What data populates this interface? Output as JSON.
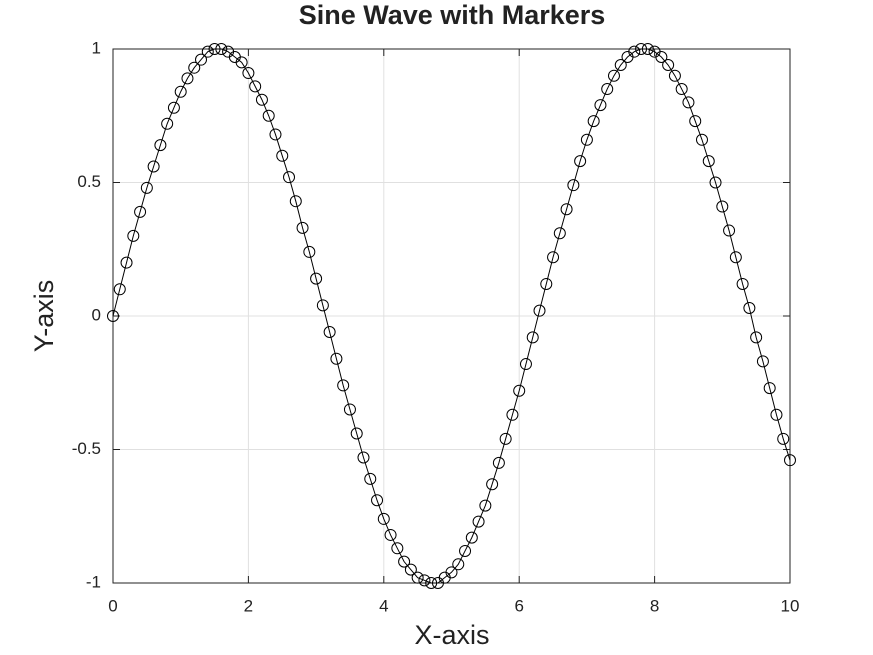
{
  "chart_data": {
    "type": "line",
    "title": "Sine Wave with Markers",
    "x_label": "X-axis",
    "y_label": "Y-axis",
    "x": [
      0,
      0.1,
      0.2,
      0.3,
      0.4,
      0.5,
      0.6,
      0.7,
      0.8,
      0.9,
      1,
      1.1,
      1.2,
      1.3,
      1.4,
      1.5,
      1.6,
      1.7,
      1.8,
      1.9,
      2,
      2.1,
      2.2,
      2.3,
      2.4,
      2.5,
      2.6,
      2.7,
      2.8,
      2.9,
      3,
      3.1,
      3.2,
      3.3,
      3.4,
      3.5,
      3.6,
      3.7,
      3.8,
      3.9,
      4,
      4.1,
      4.2,
      4.3,
      4.4,
      4.5,
      4.6,
      4.7,
      4.8,
      4.9,
      5,
      5.1,
      5.2,
      5.3,
      5.4,
      5.5,
      5.6,
      5.7,
      5.8,
      5.9,
      6,
      6.1,
      6.2,
      6.3,
      6.4,
      6.5,
      6.6,
      6.7,
      6.8,
      6.9,
      7,
      7.1,
      7.2,
      7.3,
      7.4,
      7.5,
      7.6,
      7.7,
      7.8,
      7.9,
      8,
      8.1,
      8.2,
      8.3,
      8.4,
      8.5,
      8.6,
      8.7,
      8.8,
      8.9,
      9,
      9.1,
      9.2,
      9.3,
      9.4,
      9.5,
      9.6,
      9.7,
      9.8,
      9.9,
      10
    ],
    "series": [
      {
        "color": "#000000",
        "marker": "circle",
        "values": [
          0,
          0.1,
          0.2,
          0.3,
          0.39,
          0.48,
          0.56,
          0.64,
          0.72,
          0.78,
          0.84,
          0.89,
          0.93,
          0.96,
          0.99,
          1,
          1,
          0.99,
          0.97,
          0.95,
          0.91,
          0.86,
          0.81,
          0.75,
          0.68,
          0.6,
          0.52,
          0.43,
          0.33,
          0.24,
          0.14,
          0.04,
          -0.06,
          -0.16,
          -0.26,
          -0.35,
          -0.44,
          -0.53,
          -0.61,
          -0.69,
          -0.76,
          -0.82,
          -0.87,
          -0.92,
          -0.95,
          -0.98,
          -0.99,
          -1,
          -1,
          -0.98,
          -0.96,
          -0.93,
          -0.88,
          -0.83,
          -0.77,
          -0.71,
          -0.63,
          -0.55,
          -0.46,
          -0.37,
          -0.28,
          -0.18,
          -0.08,
          0.02,
          0.12,
          0.22,
          0.31,
          0.4,
          0.49,
          0.58,
          0.66,
          0.73,
          0.79,
          0.85,
          0.9,
          0.94,
          0.97,
          0.99,
          1,
          1,
          0.99,
          0.97,
          0.94,
          0.9,
          0.85,
          0.8,
          0.73,
          0.66,
          0.58,
          0.5,
          0.41,
          0.32,
          0.22,
          0.12,
          0.03,
          -0.08,
          -0.17,
          -0.27,
          -0.37,
          -0.46,
          -0.54
        ]
      }
    ],
    "xlim": [
      0,
      10
    ],
    "xticks": [
      0,
      2,
      4,
      6,
      8,
      10
    ],
    "ylim": [
      -1,
      1
    ],
    "yticks": [
      -1,
      -0.5,
      0,
      0.5,
      1
    ],
    "grid": true
  }
}
